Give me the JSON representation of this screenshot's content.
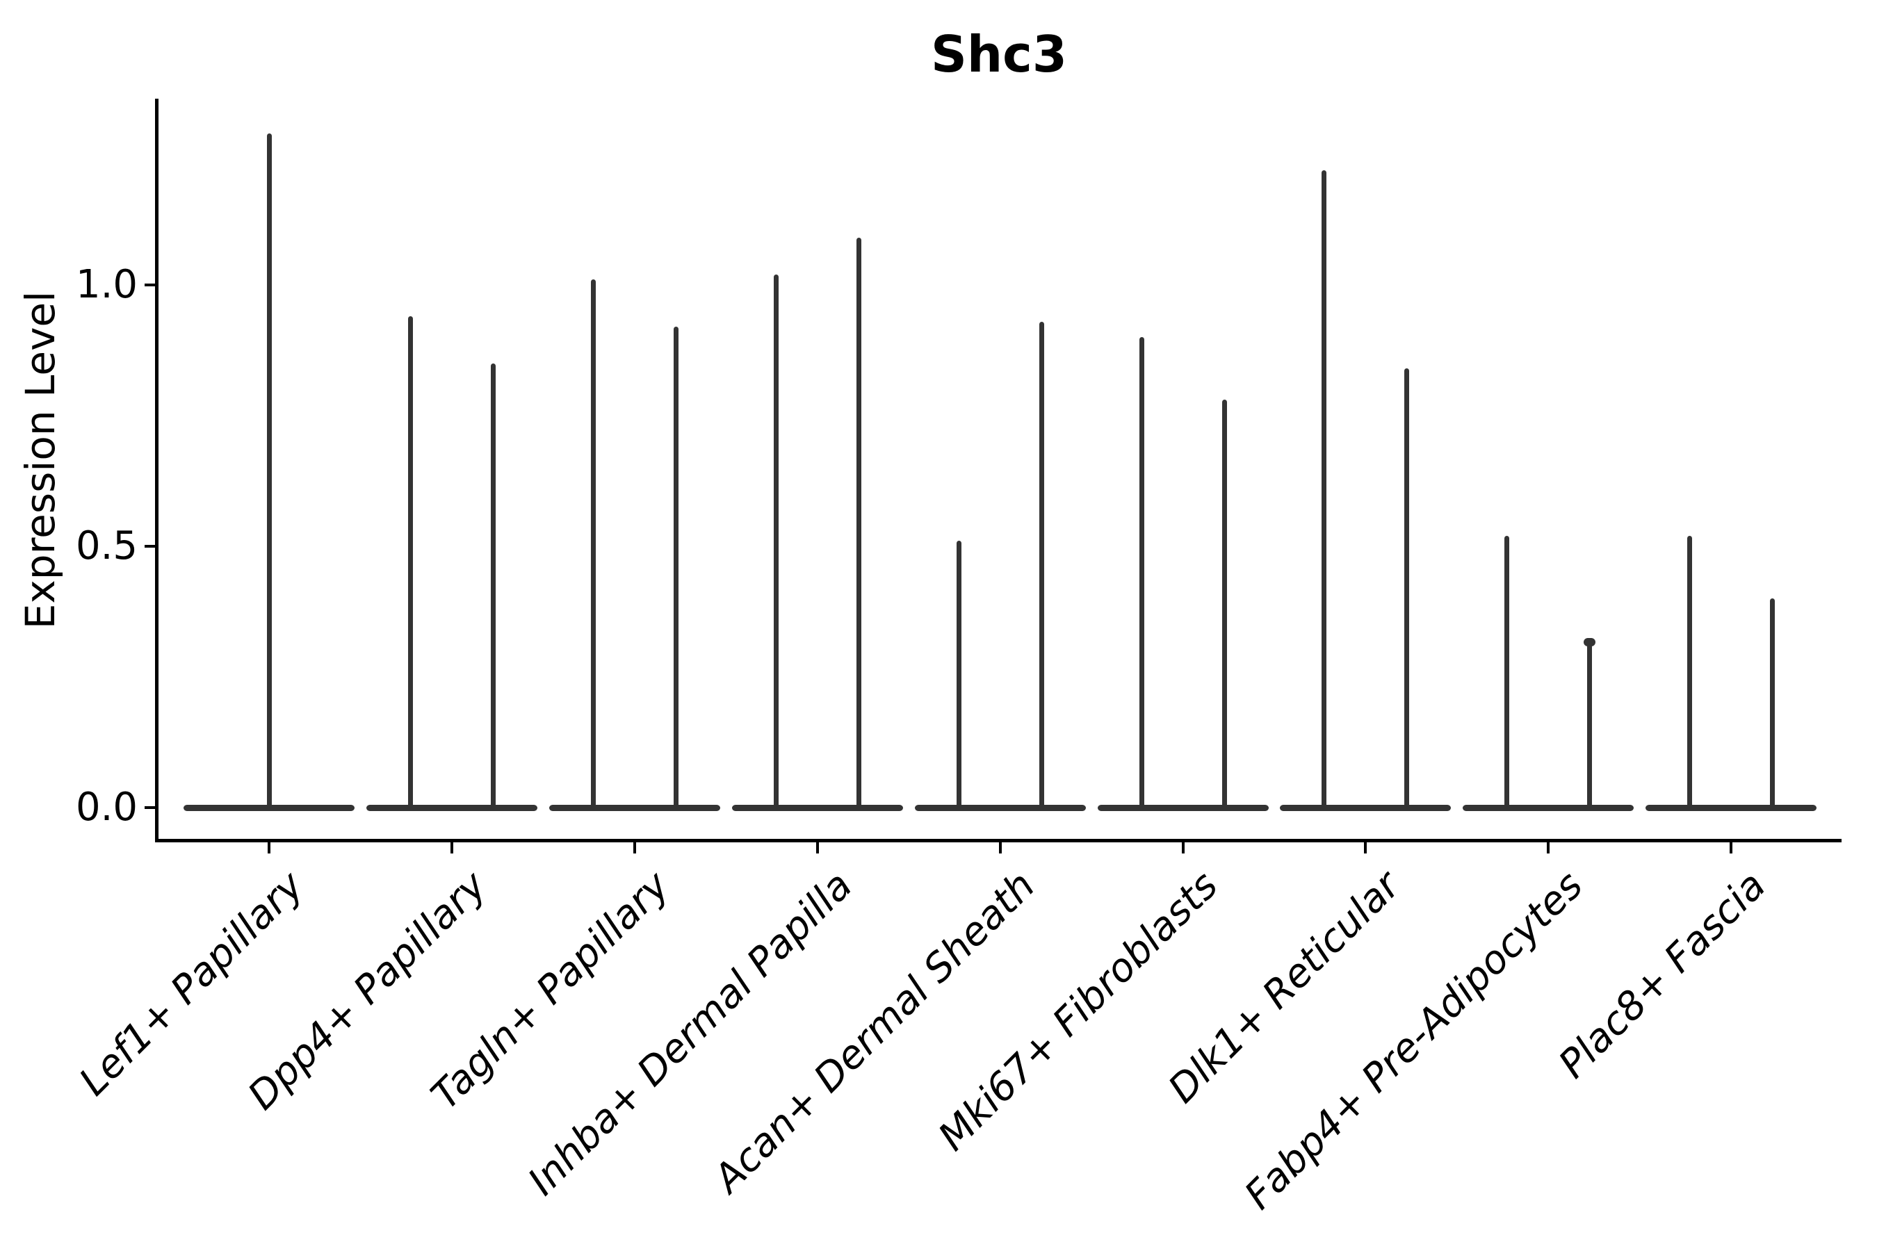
{
  "colors": {
    "violin": "#333333",
    "axis": "#000000",
    "text": "#000000",
    "background": "#ffffff"
  },
  "chart_data": {
    "type": "violin",
    "title": "Shc3",
    "xlabel": "",
    "ylabel": "Expression Level",
    "ylim": [
      -0.07,
      1.36
    ],
    "ytick_labels": [
      "0.0",
      "0.5",
      "1.0"
    ],
    "ytick_values": [
      0.0,
      0.5,
      1.0
    ],
    "grid": false,
    "legend": null,
    "style_note": "needle-style violins: wide flat base at expression 0 with thin vertical spikes up to the max expression; categories 2-9 show a left and right spike pair, category 1 a single centered spike",
    "categories": [
      "Lef1+ Papillary",
      "Dpp4+ Papillary",
      "Tagln+ Papillary",
      "Inhba+ Dermal Papilla",
      "Acan+ Dermal Sheath",
      "Mki67+ Fibroblasts",
      "Dlk1+ Reticular",
      "Fabp4+ Pre-Adipocytes",
      "Plac8+ Fascia"
    ],
    "violins": [
      {
        "category": "Lef1+ Papillary",
        "spikes": [
          {
            "position": "center",
            "max": 1.29
          }
        ]
      },
      {
        "category": "Dpp4+ Papillary",
        "spikes": [
          {
            "position": "left",
            "max": 0.94
          },
          {
            "position": "right",
            "max": 0.85
          }
        ]
      },
      {
        "category": "Tagln+ Papillary",
        "spikes": [
          {
            "position": "left",
            "max": 1.01
          },
          {
            "position": "right",
            "max": 0.92
          }
        ]
      },
      {
        "category": "Inhba+ Dermal Papilla",
        "spikes": [
          {
            "position": "left",
            "max": 1.02
          },
          {
            "position": "right",
            "max": 1.09
          }
        ]
      },
      {
        "category": "Acan+ Dermal Sheath",
        "spikes": [
          {
            "position": "left",
            "max": 0.51
          },
          {
            "position": "right",
            "max": 0.93
          }
        ]
      },
      {
        "category": "Mki67+ Fibroblasts",
        "spikes": [
          {
            "position": "left",
            "max": 0.9
          },
          {
            "position": "right",
            "max": 0.78
          }
        ]
      },
      {
        "category": "Dlk1+ Reticular",
        "spikes": [
          {
            "position": "left",
            "max": 1.22
          },
          {
            "position": "right",
            "max": 0.84
          }
        ]
      },
      {
        "category": "Fabp4+ Pre-Adipocytes",
        "spikes": [
          {
            "position": "left",
            "max": 0.52
          },
          {
            "position": "right",
            "max": 0.32,
            "knob": true
          }
        ]
      },
      {
        "category": "Plac8+ Fascia",
        "spikes": [
          {
            "position": "left",
            "max": 0.52
          },
          {
            "position": "right",
            "max": 0.4
          }
        ]
      }
    ]
  }
}
